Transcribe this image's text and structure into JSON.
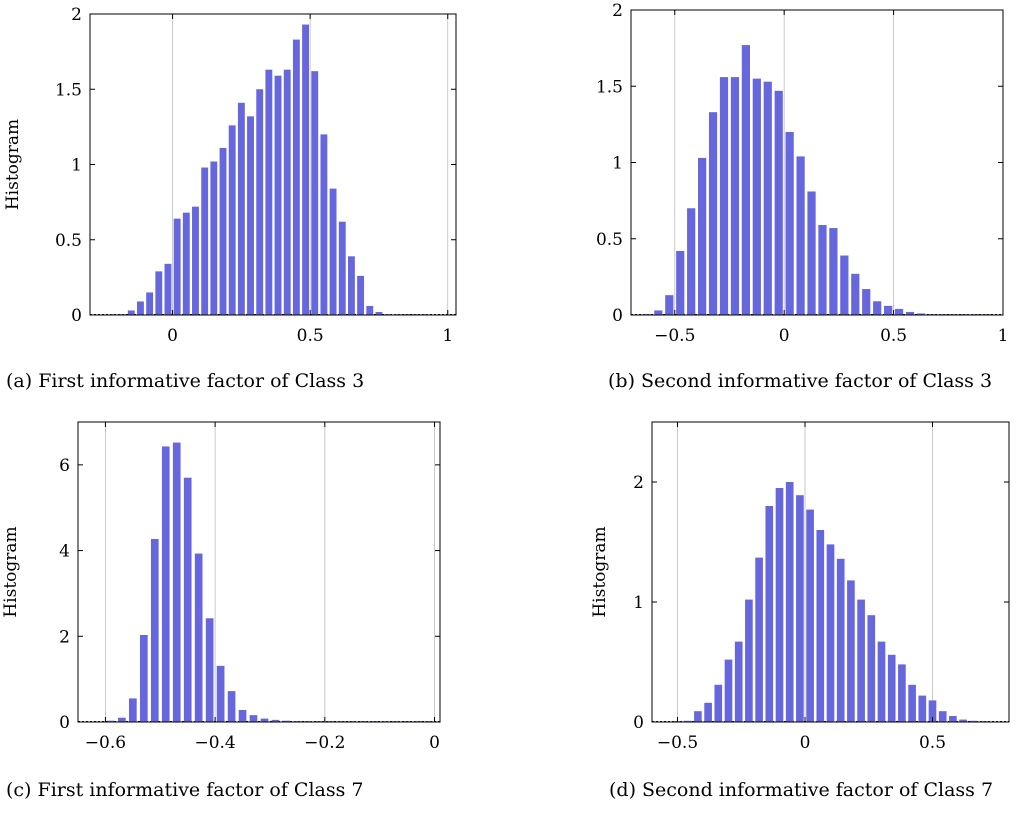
{
  "chart_data": [
    {
      "type": "bar",
      "caption": "(a) First informative factor of Class 3",
      "ylabel": "Histogram",
      "bar_color": "#6666dd",
      "grid": "vertical",
      "xlim": [
        -0.3,
        1.03
      ],
      "ylim": [
        0,
        2
      ],
      "xticks": [
        0,
        0.5,
        1
      ],
      "xtick_labels": [
        "0",
        "0.5",
        "1"
      ],
      "yticks": [
        0,
        0.5,
        1,
        1.5,
        2
      ],
      "ytick_labels": [
        "0",
        "0.5",
        "1",
        "1.5",
        "2"
      ],
      "bin_width": 0.0333,
      "x": [
        -0.2167,
        -0.1833,
        -0.15,
        -0.1167,
        -0.0833,
        -0.05,
        -0.0167,
        0.0167,
        0.05,
        0.0833,
        0.1167,
        0.15,
        0.1833,
        0.2167,
        0.25,
        0.2833,
        0.3167,
        0.35,
        0.3833,
        0.4167,
        0.45,
        0.4833,
        0.5167,
        0.55,
        0.5833,
        0.6167,
        0.65,
        0.6833,
        0.7167,
        0.75,
        0.7833,
        0.8167,
        0.85,
        0.8833,
        0.9167
      ],
      "values": [
        0.002,
        0.005,
        0.03,
        0.09,
        0.15,
        0.29,
        0.34,
        0.64,
        0.68,
        0.72,
        0.98,
        1.02,
        1.11,
        1.26,
        1.41,
        1.32,
        1.5,
        1.63,
        1.59,
        1.63,
        1.83,
        1.93,
        1.62,
        1.2,
        0.84,
        0.62,
        0.39,
        0.26,
        0.06,
        0.02,
        0.005,
        0.002,
        0.002,
        0.002,
        0.002
      ]
    },
    {
      "type": "bar",
      "caption": "(b) Second informative factor of Class 3",
      "ylabel": "",
      "bar_color": "#6666dd",
      "grid": "vertical",
      "xlim": [
        -0.7,
        1.0
      ],
      "ylim": [
        0,
        2
      ],
      "xticks": [
        -0.5,
        0,
        0.5,
        1
      ],
      "xtick_labels": [
        "−0.5",
        "0",
        "0.5",
        "1"
      ],
      "yticks": [
        0,
        0.5,
        1,
        1.5,
        2
      ],
      "ytick_labels": [
        "0",
        "0.5",
        "1",
        "1.5",
        "2"
      ],
      "bin_width": 0.05,
      "x": [
        -0.625,
        -0.575,
        -0.525,
        -0.475,
        -0.425,
        -0.375,
        -0.325,
        -0.275,
        -0.225,
        -0.175,
        -0.125,
        -0.075,
        -0.025,
        0.025,
        0.075,
        0.125,
        0.175,
        0.225,
        0.275,
        0.325,
        0.375,
        0.425,
        0.475,
        0.525,
        0.575,
        0.625,
        0.675,
        0.725,
        0.775,
        0.825,
        0.875,
        0.925
      ],
      "values": [
        0.002,
        0.03,
        0.13,
        0.42,
        0.7,
        1.03,
        1.33,
        1.56,
        1.56,
        1.77,
        1.55,
        1.53,
        1.47,
        1.2,
        1.04,
        0.81,
        0.59,
        0.57,
        0.39,
        0.27,
        0.17,
        0.09,
        0.06,
        0.04,
        0.02,
        0.01,
        0.005,
        0.005,
        0.002,
        0.002,
        0.002,
        0.002
      ]
    },
    {
      "type": "bar",
      "caption": "(c) First informative factor of Class 7",
      "ylabel": "Histogram",
      "bar_color": "#6666dd",
      "grid": "vertical",
      "xlim": [
        -0.65,
        0.01
      ],
      "ylim": [
        0,
        7
      ],
      "xticks": [
        -0.6,
        -0.4,
        -0.2,
        0
      ],
      "xtick_labels": [
        "−0.6",
        "−0.4",
        "−0.2",
        "0"
      ],
      "yticks": [
        0,
        2,
        4,
        6
      ],
      "ytick_labels": [
        "0",
        "2",
        "4",
        "6"
      ],
      "bin_width": 0.02,
      "x": [
        -0.59,
        -0.57,
        -0.55,
        -0.53,
        -0.51,
        -0.49,
        -0.47,
        -0.45,
        -0.43,
        -0.41,
        -0.39,
        -0.37,
        -0.35,
        -0.33,
        -0.31,
        -0.29,
        -0.27,
        -0.25,
        -0.23,
        -0.21,
        -0.19,
        -0.17,
        -0.15,
        -0.13,
        -0.11,
        -0.09,
        -0.07,
        -0.05,
        -0.03,
        -0.01
      ],
      "values": [
        0.03,
        0.1,
        0.55,
        2.03,
        4.27,
        6.43,
        6.52,
        5.7,
        3.93,
        2.42,
        1.31,
        0.72,
        0.28,
        0.16,
        0.08,
        0.05,
        0.03,
        0.02,
        0.02,
        0.01,
        0.01,
        0.01,
        0.005,
        0.005,
        0.005,
        0.005,
        0.005,
        0.005,
        0.005,
        0.005
      ]
    },
    {
      "type": "bar",
      "caption": "(d) Second informative factor of Class 7",
      "ylabel": "Histogram",
      "bar_color": "#6666dd",
      "grid": "vertical",
      "xlim": [
        -0.6,
        0.8
      ],
      "ylim": [
        0,
        2.5
      ],
      "xticks": [
        -0.5,
        0,
        0.5
      ],
      "xtick_labels": [
        "−0.5",
        "0",
        "0.5"
      ],
      "yticks": [
        0,
        1,
        2
      ],
      "ytick_labels": [
        "0",
        "1",
        "2"
      ],
      "bin_width": 0.04,
      "x": [
        -0.5,
        -0.46,
        -0.42,
        -0.38,
        -0.34,
        -0.3,
        -0.26,
        -0.22,
        -0.18,
        -0.14,
        -0.1,
        -0.06,
        -0.02,
        0.02,
        0.06,
        0.1,
        0.14,
        0.18,
        0.22,
        0.26,
        0.3,
        0.34,
        0.38,
        0.42,
        0.46,
        0.5,
        0.54,
        0.58,
        0.62,
        0.66,
        0.7
      ],
      "values": [
        0.005,
        0.01,
        0.09,
        0.16,
        0.31,
        0.52,
        0.67,
        1.02,
        1.37,
        1.8,
        1.95,
        2.0,
        1.89,
        1.77,
        1.6,
        1.48,
        1.36,
        1.18,
        1.02,
        0.89,
        0.67,
        0.56,
        0.48,
        0.31,
        0.22,
        0.18,
        0.09,
        0.05,
        0.02,
        0.01,
        0.005
      ]
    }
  ]
}
